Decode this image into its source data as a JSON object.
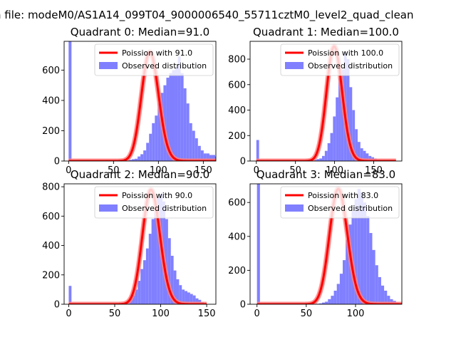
{
  "figure": {
    "suptitle": "n file: modeM0/AS1A14_099T04_9000006540_55711cztM0_level2_quad_clean"
  },
  "colors": {
    "hist": "#8080ff",
    "poisson": "#ff0000",
    "poisson_halo": "#ff8080",
    "axes": "#000000"
  },
  "chart_data": [
    {
      "type": "bar+line",
      "title": "Quadrant 0: Median=91.0",
      "median": 91,
      "xlim": [
        -5,
        164
      ],
      "ylim": [
        0,
        790
      ],
      "xticks": [
        0,
        50,
        100,
        150
      ],
      "yticks": [
        0,
        200,
        400,
        600
      ],
      "legend_position": "top-right",
      "legend": [
        "Poission with 91.0",
        "Observed distribution"
      ],
      "zero_bin_value": 790,
      "hist": {
        "bin_width": 3.2,
        "start": 0,
        "values": [
          790,
          0,
          0,
          0,
          0,
          0,
          0,
          0,
          0,
          0,
          0,
          0,
          0,
          0,
          0,
          0,
          0,
          3,
          3,
          3,
          5,
          8,
          12,
          15,
          30,
          45,
          70,
          120,
          180,
          250,
          300,
          380,
          450,
          500,
          550,
          580,
          600,
          620,
          690,
          580,
          480,
          380,
          250,
          200,
          150,
          100,
          70,
          50,
          50,
          40,
          40,
          30,
          10,
          5,
          3
        ]
      },
      "poisson": {
        "mu": 91,
        "peak": 720
      }
    },
    {
      "type": "bar+line",
      "title": "Quadrant 1: Median=100.0",
      "median": 100,
      "xlim": [
        -8,
        186
      ],
      "ylim": [
        0,
        940
      ],
      "xticks": [
        0,
        50,
        100,
        150
      ],
      "yticks": [
        0,
        200,
        400,
        600,
        800
      ],
      "legend_position": "top-right",
      "legend": [
        "Poission with 100.0",
        "Observed distribution"
      ],
      "zero_bin_value": 165,
      "hist": {
        "bin_width": 3.5,
        "start": 0,
        "values": [
          165,
          0,
          0,
          0,
          0,
          0,
          0,
          0,
          0,
          0,
          0,
          0,
          0,
          0,
          0,
          0,
          0,
          0,
          0,
          3,
          5,
          10,
          15,
          20,
          40,
          80,
          140,
          220,
          350,
          500,
          650,
          720,
          850,
          800,
          580,
          400,
          250,
          150,
          100,
          80,
          60,
          40,
          30,
          20,
          10,
          5,
          3,
          2,
          1,
          1,
          1
        ]
      },
      "poisson": {
        "mu": 100,
        "peak": 900
      }
    },
    {
      "type": "bar+line",
      "title": "Quadrant 2: Median=90.0",
      "median": 90,
      "xlim": [
        -5,
        160
      ],
      "ylim": [
        0,
        820
      ],
      "xticks": [
        0,
        50,
        100,
        150
      ],
      "yticks": [
        0,
        200,
        400,
        600,
        800
      ],
      "legend_position": "top-right",
      "legend": [
        "Poission with 90.0",
        "Observed distribution"
      ],
      "zero_bin_value": 125,
      "hist": {
        "bin_width": 3.0,
        "start": 0,
        "values": [
          125,
          0,
          0,
          0,
          0,
          0,
          0,
          0,
          0,
          0,
          0,
          0,
          0,
          0,
          0,
          0,
          0,
          3,
          5,
          8,
          10,
          20,
          35,
          60,
          100,
          160,
          240,
          300,
          380,
          480,
          580,
          650,
          730,
          750,
          700,
          580,
          450,
          330,
          230,
          170,
          130,
          100,
          90,
          80,
          70,
          60,
          40,
          30,
          15,
          5
        ]
      },
      "poisson": {
        "mu": 90,
        "peak": 780
      }
    },
    {
      "type": "bar+line",
      "title": "Quadrant 3: Median=83.0",
      "median": 83,
      "xlim": [
        -7,
        147
      ],
      "ylim": [
        0,
        710
      ],
      "xticks": [
        0,
        50,
        100
      ],
      "yticks": [
        0,
        200,
        400,
        600
      ],
      "legend_position": "top-right",
      "legend": [
        "Poission with 83.0",
        "Observed distribution"
      ],
      "zero_bin_value": 710,
      "hist": {
        "bin_width": 3.0,
        "start": 0,
        "values": [
          710,
          0,
          0,
          0,
          0,
          0,
          0,
          0,
          0,
          0,
          0,
          0,
          0,
          0,
          0,
          0,
          0,
          0,
          0,
          0,
          3,
          5,
          10,
          15,
          30,
          50,
          80,
          120,
          180,
          260,
          380,
          470,
          550,
          620,
          680,
          660,
          600,
          520,
          420,
          320,
          230,
          160,
          110,
          80,
          50,
          30,
          20,
          10,
          5,
          3
        ]
      },
      "poisson": {
        "mu": 83,
        "peak": 680
      }
    }
  ]
}
